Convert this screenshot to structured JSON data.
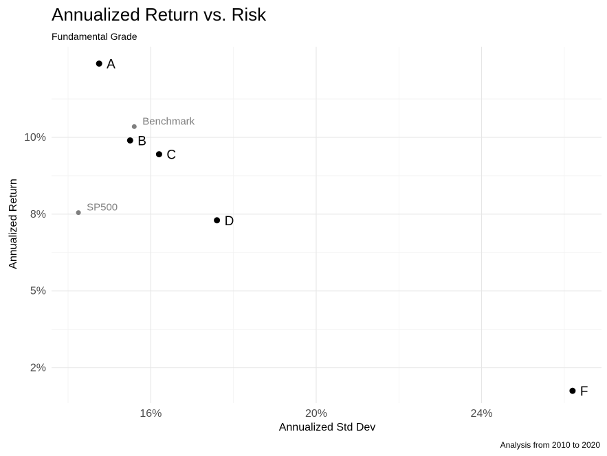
{
  "chart_data": {
    "type": "scatter",
    "title": "Annualized Return vs. Risk",
    "subtitle": "Fundamental Grade",
    "caption": "Analysis from 2010 to 2020",
    "xlabel": "Annualized Std Dev",
    "ylabel": "Annualized Return",
    "xlim": [
      13.6,
      26.9
    ],
    "ylim": [
      1.35,
      12.95
    ],
    "x_ticks": [
      16,
      20,
      24
    ],
    "x_tick_labels": [
      "16%",
      "20%",
      "24%"
    ],
    "y_ticks": [
      2.5,
      5,
      7.5,
      10
    ],
    "y_tick_labels": [
      "2%",
      "5%",
      "8%",
      "10%"
    ],
    "grid": true,
    "legend": "none",
    "points": [
      {
        "label": "A",
        "x": 14.75,
        "y": 12.4,
        "group": "grade",
        "color": "#000000"
      },
      {
        "label": "B",
        "x": 15.5,
        "y": 9.9,
        "group": "grade",
        "color": "#000000"
      },
      {
        "label": "C",
        "x": 16.2,
        "y": 9.45,
        "group": "grade",
        "color": "#000000"
      },
      {
        "label": "D",
        "x": 17.6,
        "y": 7.3,
        "group": "grade",
        "color": "#000000"
      },
      {
        "label": "F",
        "x": 26.2,
        "y": 1.75,
        "group": "grade",
        "color": "#000000"
      },
      {
        "label": "Benchmark",
        "x": 15.6,
        "y": 10.35,
        "group": "reference",
        "color": "#7f7f7f"
      },
      {
        "label": "SP500",
        "x": 14.25,
        "y": 7.55,
        "group": "reference",
        "color": "#7f7f7f"
      }
    ]
  }
}
